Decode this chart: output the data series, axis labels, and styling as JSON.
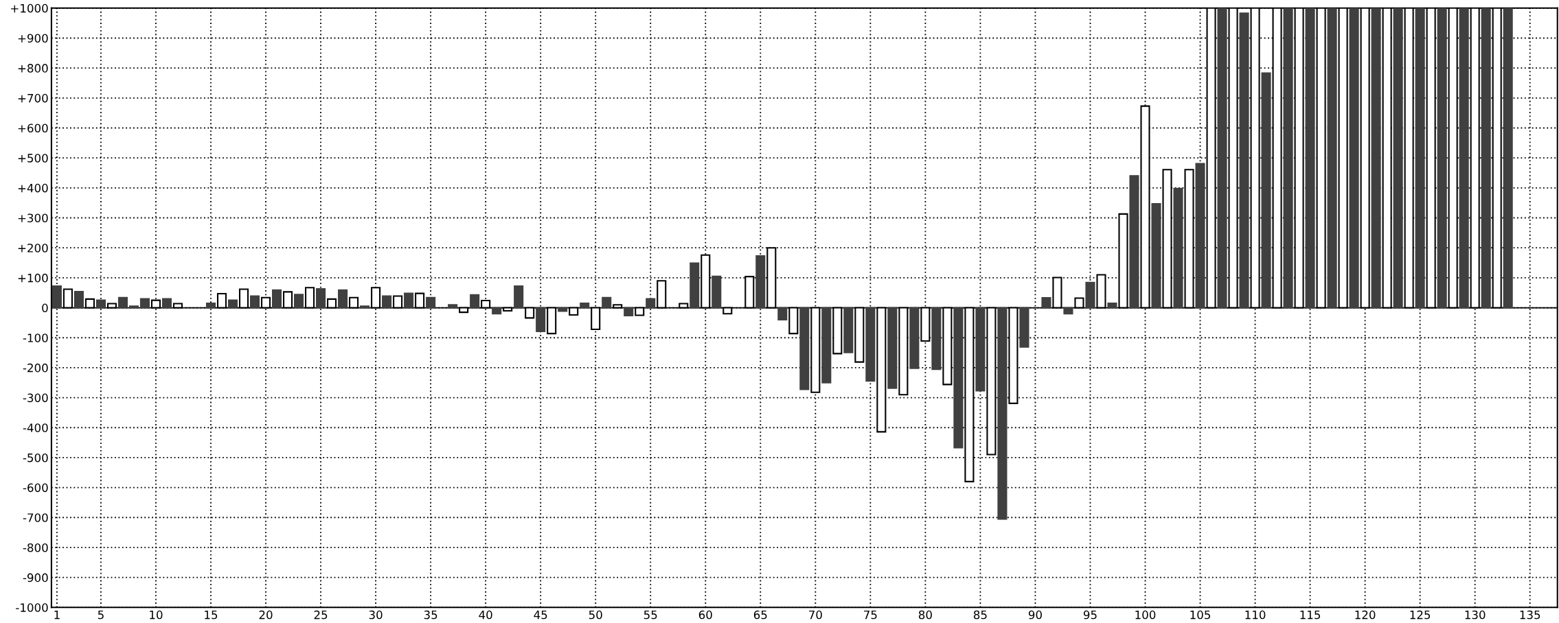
{
  "chart_data": {
    "type": "bar",
    "x": [
      1,
      2,
      3,
      4,
      5,
      6,
      7,
      8,
      9,
      10,
      11,
      12,
      15,
      16,
      17,
      18,
      19,
      20,
      21,
      22,
      23,
      24,
      25,
      26,
      27,
      28,
      29,
      30,
      31,
      32,
      33,
      34,
      35,
      37,
      38,
      39,
      40,
      41,
      42,
      43,
      44,
      45,
      46,
      47,
      48,
      49,
      50,
      51,
      52,
      53,
      54,
      55,
      56,
      58,
      59,
      60,
      61,
      62,
      64,
      65,
      66,
      67,
      68,
      69,
      70,
      71,
      72,
      73,
      74,
      75,
      76,
      77,
      78,
      79,
      80,
      81,
      82,
      83,
      84,
      85,
      86,
      87,
      88,
      89,
      91,
      92,
      93,
      94,
      95,
      96,
      97,
      98,
      99,
      100,
      101,
      102,
      103,
      104,
      105,
      106,
      107,
      108,
      109,
      110,
      111,
      112,
      113,
      114,
      115,
      116,
      117,
      118,
      119,
      120,
      121,
      122,
      123,
      124,
      125,
      126,
      127,
      128,
      129,
      130,
      131,
      132,
      133
    ],
    "values": [
      72,
      62,
      54,
      29,
      25,
      14,
      34,
      5,
      30,
      25,
      30,
      14,
      15,
      47,
      25,
      62,
      39,
      34,
      59,
      53,
      44,
      67,
      63,
      29,
      59,
      34,
      5,
      67,
      39,
      39,
      48,
      48,
      34,
      10,
      -15,
      43,
      24,
      -20,
      -10,
      72,
      -34,
      -79,
      -86,
      -11,
      -24,
      15,
      -72,
      34,
      10,
      -26,
      -25,
      30,
      90,
      14,
      149,
      176,
      105,
      -20,
      104,
      173,
      200,
      -40,
      -86,
      -272,
      -282,
      -250,
      -153,
      -149,
      -181,
      -244,
      -414,
      -268,
      -290,
      -202,
      -111,
      -205,
      -256,
      -467,
      -580,
      -277,
      -490,
      -705,
      -319,
      -131,
      33,
      101,
      -20,
      32,
      84,
      110,
      15,
      313,
      440,
      673,
      347,
      461,
      398,
      461,
      481,
      1000,
      1000,
      1000,
      983,
      1000,
      783,
      1000,
      1000,
      1000,
      1000,
      1000,
      1000,
      1000,
      1000,
      1000,
      1000,
      1000,
      1000,
      1000,
      1000,
      1000,
      1000,
      1000,
      1000,
      1000,
      1000,
      1000,
      1000
    ],
    "colors": [
      "#404040",
      "#ffffff",
      "#404040",
      "#ffffff",
      "#404040",
      "#ffffff",
      "#404040",
      "#404040",
      "#404040",
      "#ffffff",
      "#404040",
      "#ffffff",
      "#404040",
      "#ffffff",
      "#404040",
      "#ffffff",
      "#404040",
      "#ffffff",
      "#404040",
      "#ffffff",
      "#404040",
      "#ffffff",
      "#404040",
      "#ffffff",
      "#404040",
      "#ffffff",
      "#404040",
      "#ffffff",
      "#404040",
      "#ffffff",
      "#404040",
      "#ffffff",
      "#404040",
      "#404040",
      "#ffffff",
      "#404040",
      "#ffffff",
      "#404040",
      "#ffffff",
      "#404040",
      "#ffffff",
      "#404040",
      "#ffffff",
      "#404040",
      "#ffffff",
      "#404040",
      "#ffffff",
      "#404040",
      "#ffffff",
      "#404040",
      "#ffffff",
      "#404040",
      "#ffffff",
      "#ffffff",
      "#404040",
      "#ffffff",
      "#404040",
      "#ffffff",
      "#ffffff",
      "#404040",
      "#ffffff",
      "#404040",
      "#ffffff",
      "#404040",
      "#ffffff",
      "#404040",
      "#ffffff",
      "#404040",
      "#ffffff",
      "#404040",
      "#ffffff",
      "#404040",
      "#ffffff",
      "#404040",
      "#ffffff",
      "#404040",
      "#ffffff",
      "#404040",
      "#ffffff",
      "#404040",
      "#ffffff",
      "#404040",
      "#ffffff",
      "#404040",
      "#404040",
      "#ffffff",
      "#404040",
      "#ffffff",
      "#404040",
      "#ffffff",
      "#404040",
      "#ffffff",
      "#404040",
      "#ffffff",
      "#404040",
      "#ffffff",
      "#404040",
      "#ffffff",
      "#404040",
      "#ffffff",
      "#404040",
      "#ffffff",
      "#404040",
      "#ffffff",
      "#404040",
      "#ffffff",
      "#404040",
      "#ffffff",
      "#404040",
      "#ffffff",
      "#404040",
      "#ffffff",
      "#404040",
      "#ffffff",
      "#404040",
      "#ffffff",
      "#404040",
      "#ffffff",
      "#404040",
      "#ffffff",
      "#404040",
      "#ffffff",
      "#404040",
      "#ffffff",
      "#404040",
      "#ffffff",
      "#404040"
    ],
    "xlim": [
      0.5,
      137.5
    ],
    "xticks": [
      1,
      5,
      10,
      15,
      20,
      25,
      30,
      35,
      40,
      45,
      50,
      55,
      60,
      65,
      70,
      75,
      80,
      85,
      90,
      95,
      100,
      105,
      110,
      115,
      120,
      125,
      130,
      135
    ],
    "ylim": [
      -1000,
      1000
    ],
    "yticks": [
      {
        "value": -1000,
        "label": "-1000"
      },
      {
        "value": -900,
        "label": "-900"
      },
      {
        "value": -800,
        "label": "-800"
      },
      {
        "value": -700,
        "label": "-700"
      },
      {
        "value": -600,
        "label": "-600"
      },
      {
        "value": -500,
        "label": "-500"
      },
      {
        "value": -400,
        "label": "-400"
      },
      {
        "value": -300,
        "label": "-300"
      },
      {
        "value": -200,
        "label": "-200"
      },
      {
        "value": -100,
        "label": "-100"
      },
      {
        "value": 0,
        "label": "0"
      },
      {
        "value": 100,
        "label": "+100"
      },
      {
        "value": 200,
        "label": "+200"
      },
      {
        "value": 300,
        "label": "+300"
      },
      {
        "value": 400,
        "label": "+400"
      },
      {
        "value": 500,
        "label": "+500"
      },
      {
        "value": 600,
        "label": "+600"
      },
      {
        "value": 700,
        "label": "+700"
      },
      {
        "value": 800,
        "label": "+800"
      },
      {
        "value": 900,
        "label": "+900"
      },
      {
        "value": 1000,
        "label": "+1000"
      }
    ],
    "grid": true,
    "ref_lines": [
      {
        "axis": "y",
        "value": 0,
        "color": "#000000"
      }
    ]
  }
}
